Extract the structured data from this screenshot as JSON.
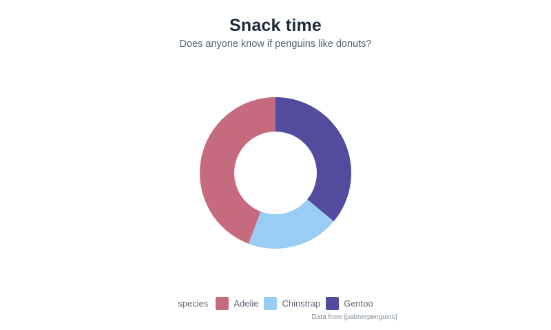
{
  "chart_data": {
    "type": "pie",
    "variant": "donut",
    "title": "Snack time",
    "subtitle": "Does anyone know if penguins like donuts?",
    "caption": "Data from {palmerpenguins}",
    "legend_title": "species",
    "legend_position": "bottom",
    "categories": [
      "Adelie",
      "Chinstrap",
      "Gentoo"
    ],
    "values": [
      152,
      68,
      124
    ],
    "percentages": [
      44.2,
      19.8,
      36.0
    ],
    "angles_deg": [
      159.1,
      71.2,
      129.8
    ],
    "colors": [
      "#c66b7d",
      "#9acdf3",
      "#524b9e"
    ],
    "start_angle_deg": 0,
    "draw_order": "reversed-clockwise-from-top",
    "inner_radius_ratio": 0.545,
    "background": "#ffffff",
    "grid": false
  },
  "colors": {
    "title_text": "#1e2b3a",
    "subtitle_text": "#546170",
    "legend_text": "#5e6977",
    "caption_text": "#808b99"
  }
}
